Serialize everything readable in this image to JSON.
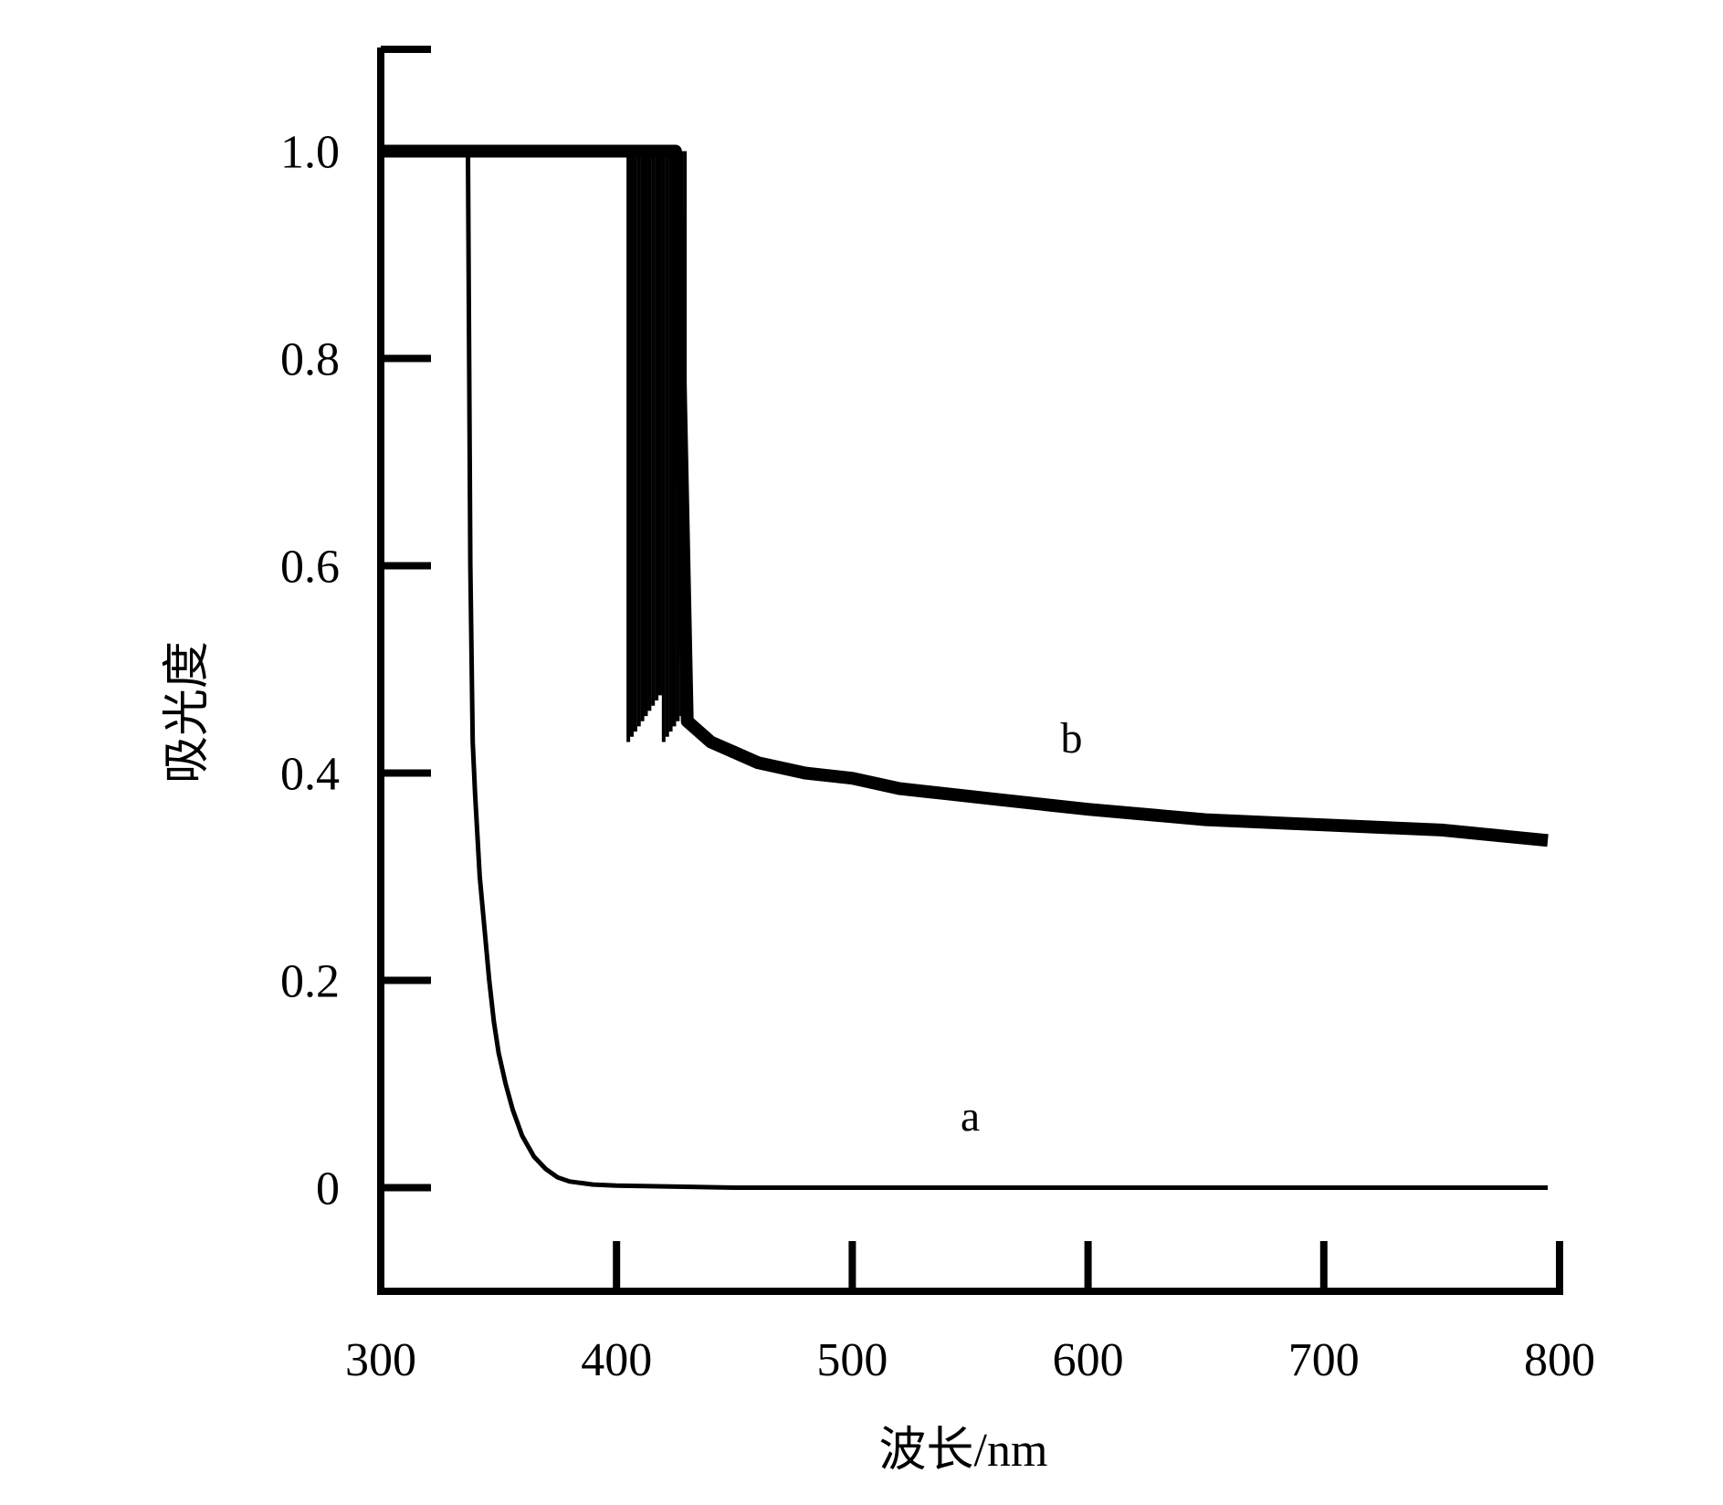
{
  "chart_data": {
    "type": "line",
    "xlabel": "波长/nm",
    "ylabel": "吸光度",
    "xlim": [
      300,
      800
    ],
    "ylim": [
      -0.1,
      1.1
    ],
    "x_ticks": [
      300,
      400,
      500,
      600,
      700,
      800
    ],
    "y_ticks": [
      0,
      0.2,
      0.4,
      0.6,
      0.8,
      1.0
    ],
    "x_tick_labels": [
      "300",
      "400",
      "500",
      "600",
      "700",
      "800"
    ],
    "y_tick_labels": [
      "0",
      "0.2",
      "0.4",
      "0.6",
      "0.8",
      "1.0"
    ],
    "grid": false,
    "legend": "none",
    "series": [
      {
        "name": "a",
        "label_at": [
          550,
          0.055
        ],
        "color": "#000000",
        "x": [
          336,
          337,
          338,
          339,
          340,
          342,
          344,
          346,
          348,
          350,
          353,
          356,
          360,
          365,
          370,
          375,
          380,
          390,
          400,
          450,
          500,
          600,
          700,
          795
        ],
        "y": [
          1.0,
          1.0,
          0.6,
          0.43,
          0.38,
          0.3,
          0.25,
          0.2,
          0.16,
          0.13,
          0.1,
          0.075,
          0.05,
          0.03,
          0.018,
          0.01,
          0.006,
          0.003,
          0.002,
          0.0,
          0.0,
          0.0,
          0.0,
          0.0
        ]
      },
      {
        "name": "b",
        "label_at": [
          593,
          0.42
        ],
        "color": "#000000",
        "x": [
          300,
          330,
          360,
          390,
          400,
          405,
          410,
          415,
          420,
          425,
          430,
          440,
          450,
          460,
          480,
          500,
          520,
          540,
          560,
          580,
          600,
          650,
          700,
          750,
          795
        ],
        "y": [
          1.0,
          1.0,
          1.0,
          1.0,
          1.0,
          1.0,
          1.0,
          1.0,
          1.0,
          1.0,
          0.45,
          0.43,
          0.42,
          0.41,
          0.4,
          0.395,
          0.385,
          0.38,
          0.375,
          0.37,
          0.365,
          0.355,
          0.35,
          0.345,
          0.335
        ]
      }
    ]
  }
}
